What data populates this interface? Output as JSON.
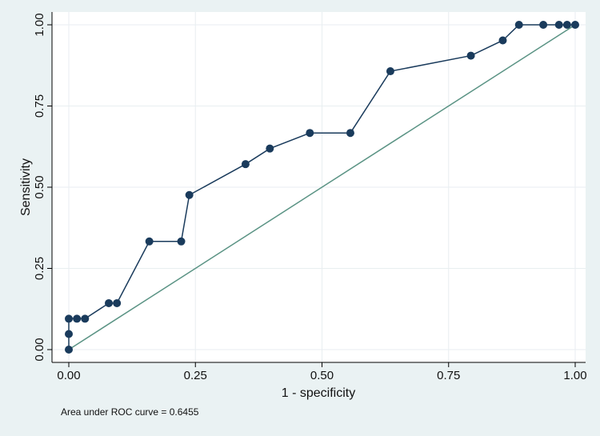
{
  "chart_data": {
    "type": "line",
    "xlabel": "1 - specificity",
    "ylabel": "Sensitivity",
    "xlim": [
      0,
      1
    ],
    "ylim": [
      0,
      1
    ],
    "x_ticks": [
      "0.00",
      "0.25",
      "0.50",
      "0.75",
      "1.00"
    ],
    "y_ticks": [
      "0.00",
      "0.25",
      "0.50",
      "0.75",
      "1.00"
    ],
    "grid": true,
    "annotation": "Area under ROC curve = 0.6455",
    "colors": {
      "background": "#eaf2f3",
      "plot_background": "#ffffff",
      "curve": "#1a3b5c",
      "marker": "#1a3b5c",
      "reference": "#5a9384",
      "grid": "#e8eef0"
    },
    "series": [
      {
        "x": [
          0,
          0,
          0,
          0.016,
          0.032,
          0.079,
          0.095,
          0.159,
          0.222,
          0.238,
          0.349,
          0.397,
          0.476,
          0.556,
          0.635,
          0.794,
          0.857,
          0.889,
          0.937,
          0.968,
          0.984,
          1.0
        ],
        "y": [
          0,
          0.048,
          0.095,
          0.095,
          0.095,
          0.143,
          0.143,
          0.333,
          0.333,
          0.476,
          0.571,
          0.619,
          0.667,
          0.667,
          0.857,
          0.905,
          0.952,
          1.0,
          1.0,
          1.0,
          1.0,
          1.0
        ]
      }
    ],
    "reference_line": {
      "x": [
        0,
        1
      ],
      "y": [
        0,
        1
      ]
    }
  }
}
